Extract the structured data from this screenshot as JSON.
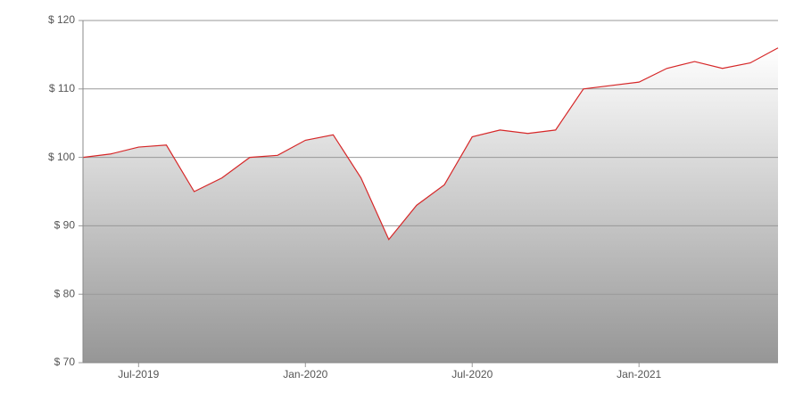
{
  "chart_data": {
    "type": "line",
    "x": [
      "2019-05",
      "2019-06",
      "2019-07",
      "2019-08",
      "2019-09",
      "2019-10",
      "2019-11",
      "2019-12",
      "2020-01",
      "2020-02",
      "2020-03",
      "2020-04",
      "2020-05",
      "2020-06",
      "2020-07",
      "2020-08",
      "2020-09",
      "2020-10",
      "2020-11",
      "2020-12",
      "2021-01",
      "2021-02",
      "2021-03",
      "2021-04",
      "2021-05",
      "2021-06"
    ],
    "series": [
      {
        "color": "#d62728",
        "values": [
          100,
          100.5,
          101.5,
          101.8,
          95,
          97,
          100,
          100.3,
          102.5,
          103.3,
          97,
          88,
          93,
          96,
          103,
          104,
          103.5,
          104,
          110,
          110.5,
          111,
          113,
          114,
          113,
          113.8,
          116
        ]
      }
    ],
    "xlim": [
      "2019-05",
      "2021-06"
    ],
    "xticks": [
      {
        "value": "2019-07",
        "label": "Jul-2019"
      },
      {
        "value": "2020-01",
        "label": "Jan-2020"
      },
      {
        "value": "2020-07",
        "label": "Jul-2020"
      },
      {
        "value": "2021-01",
        "label": "Jan-2021"
      }
    ],
    "ylim": [
      70,
      120
    ],
    "yticks": [
      {
        "value": 70,
        "label": "$ 70"
      },
      {
        "value": 80,
        "label": "$ 80"
      },
      {
        "value": 90,
        "label": "$ 90"
      },
      {
        "value": 100,
        "label": "$ 100"
      },
      {
        "value": 110,
        "label": "$ 110"
      },
      {
        "value": 120,
        "label": "$ 120"
      }
    ],
    "grid": true
  }
}
